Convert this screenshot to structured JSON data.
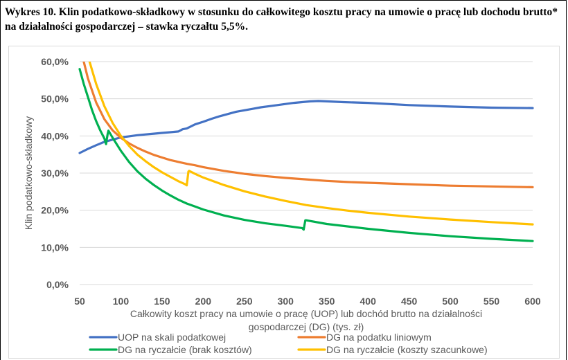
{
  "figure": {
    "caption": "Wykres 10. Klin podatkowo-składkowy w stosunku do całkowitego kosztu pracy na umowie o pracę lub dochodu brutto* na działalności gospodarczej – stawka ryczałtu 5,5%."
  },
  "chart_data": {
    "type": "line",
    "xlabel_line1": "Całkowity koszt pracy na umowie o pracę (UOP) lub dochód brutto na działalności",
    "xlabel_line2": "gospodarczej (DG) (tys. zł)",
    "ylabel": "Klin podatkowo-składkowy",
    "xlim": [
      50,
      600
    ],
    "ylim": [
      0,
      60
    ],
    "x_ticks": [
      "50",
      "100",
      "150",
      "200",
      "250",
      "300",
      "350",
      "400",
      "450",
      "500",
      "550",
      "600"
    ],
    "y_ticks": [
      "0,0%",
      "10,0%",
      "20,0%",
      "30,0%",
      "40,0%",
      "50,0%",
      "60,0%"
    ],
    "grid": "horizontal",
    "legend_position": "bottom",
    "series": [
      {
        "name": "UOP na skali podatkowej",
        "color": "#4472C4",
        "points": [
          [
            50,
            35.4
          ],
          [
            60,
            36.5
          ],
          [
            70,
            37.5
          ],
          [
            80,
            38.4
          ],
          [
            90,
            39.0
          ],
          [
            100,
            39.6
          ],
          [
            110,
            39.9
          ],
          [
            120,
            40.2
          ],
          [
            130,
            40.4
          ],
          [
            140,
            40.6
          ],
          [
            150,
            40.8
          ],
          [
            160,
            41.0
          ],
          [
            170,
            41.2
          ],
          [
            175,
            41.8
          ],
          [
            180,
            42.0
          ],
          [
            190,
            43.1
          ],
          [
            200,
            43.8
          ],
          [
            210,
            44.6
          ],
          [
            220,
            45.3
          ],
          [
            230,
            45.9
          ],
          [
            240,
            46.5
          ],
          [
            250,
            46.9
          ],
          [
            260,
            47.3
          ],
          [
            270,
            47.7
          ],
          [
            280,
            48.0
          ],
          [
            290,
            48.3
          ],
          [
            300,
            48.6
          ],
          [
            310,
            48.9
          ],
          [
            320,
            49.1
          ],
          [
            330,
            49.3
          ],
          [
            340,
            49.4
          ],
          [
            350,
            49.3
          ],
          [
            370,
            49.1
          ],
          [
            400,
            48.9
          ],
          [
            450,
            48.3
          ],
          [
            500,
            47.9
          ],
          [
            550,
            47.6
          ],
          [
            600,
            47.5
          ]
        ]
      },
      {
        "name": "DG na podatku liniowym",
        "color": "#ED7D31",
        "points": [
          [
            50,
            65.0
          ],
          [
            55,
            60.0
          ],
          [
            60,
            55.5
          ],
          [
            70,
            49.0
          ],
          [
            80,
            44.5
          ],
          [
            90,
            41.5
          ],
          [
            100,
            39.5
          ],
          [
            110,
            38.0
          ],
          [
            120,
            36.8
          ],
          [
            130,
            35.8
          ],
          [
            140,
            34.9
          ],
          [
            150,
            34.2
          ],
          [
            160,
            33.5
          ],
          [
            170,
            33.0
          ],
          [
            180,
            32.5
          ],
          [
            190,
            32.1
          ],
          [
            200,
            31.6
          ],
          [
            225,
            30.6
          ],
          [
            250,
            29.8
          ],
          [
            275,
            29.2
          ],
          [
            300,
            28.7
          ],
          [
            325,
            28.3
          ],
          [
            350,
            27.9
          ],
          [
            375,
            27.6
          ],
          [
            400,
            27.4
          ],
          [
            450,
            27.0
          ],
          [
            500,
            26.6
          ],
          [
            550,
            26.4
          ],
          [
            600,
            26.2
          ]
        ]
      },
      {
        "name": "DG na ryczałcie (brak kosztów)",
        "color": "#00B050",
        "points": [
          [
            50,
            58.0
          ],
          [
            55,
            54.0
          ],
          [
            60,
            50.5
          ],
          [
            65,
            47.0
          ],
          [
            70,
            44.0
          ],
          [
            75,
            41.5
          ],
          [
            80,
            39.3
          ],
          [
            82,
            37.8
          ],
          [
            84,
            40.5
          ],
          [
            85,
            41.4
          ],
          [
            90,
            39.5
          ],
          [
            100,
            36.0
          ],
          [
            110,
            33.0
          ],
          [
            120,
            30.5
          ],
          [
            130,
            28.5
          ],
          [
            140,
            26.8
          ],
          [
            150,
            25.3
          ],
          [
            160,
            24.0
          ],
          [
            170,
            22.8
          ],
          [
            180,
            21.8
          ],
          [
            190,
            21.0
          ],
          [
            200,
            20.2
          ],
          [
            225,
            18.6
          ],
          [
            250,
            17.4
          ],
          [
            275,
            16.5
          ],
          [
            300,
            15.8
          ],
          [
            320,
            15.2
          ],
          [
            322,
            14.8
          ],
          [
            324,
            17.3
          ],
          [
            325,
            17.3
          ],
          [
            350,
            16.3
          ],
          [
            400,
            15.0
          ],
          [
            450,
            13.9
          ],
          [
            500,
            13.0
          ],
          [
            550,
            12.3
          ],
          [
            600,
            11.7
          ]
        ]
      },
      {
        "name": "DG na ryczałcie (koszty szacunkowe)",
        "color": "#FFC000",
        "points": [
          [
            50,
            68.0
          ],
          [
            55,
            64.5
          ],
          [
            60,
            61.5
          ],
          [
            70,
            54.0
          ],
          [
            80,
            48.0
          ],
          [
            90,
            43.5
          ],
          [
            100,
            40.0
          ],
          [
            110,
            37.3
          ],
          [
            120,
            35.0
          ],
          [
            130,
            33.2
          ],
          [
            140,
            31.6
          ],
          [
            150,
            30.2
          ],
          [
            160,
            29.0
          ],
          [
            170,
            27.8
          ],
          [
            178,
            27.0
          ],
          [
            180,
            26.7
          ],
          [
            182,
            30.4
          ],
          [
            183,
            30.6
          ],
          [
            190,
            29.8
          ],
          [
            200,
            28.8
          ],
          [
            225,
            26.8
          ],
          [
            250,
            25.1
          ],
          [
            275,
            23.7
          ],
          [
            300,
            22.5
          ],
          [
            325,
            21.4
          ],
          [
            350,
            20.6
          ],
          [
            375,
            19.9
          ],
          [
            400,
            19.3
          ],
          [
            450,
            18.3
          ],
          [
            500,
            17.5
          ],
          [
            550,
            16.8
          ],
          [
            600,
            16.2
          ]
        ]
      }
    ]
  }
}
